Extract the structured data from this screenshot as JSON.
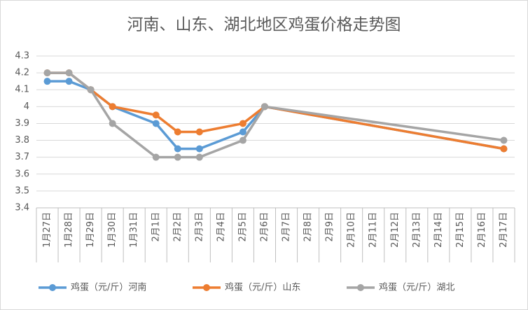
{
  "chart_data": {
    "type": "line",
    "title": "河南、山东、湖北地区鸡蛋价格走势图",
    "categories": [
      "1月27日",
      "1月28日",
      "1月29日",
      "1月30日",
      "1月31日",
      "2月1日",
      "2月2日",
      "2月3日",
      "2月4日",
      "2月5日",
      "2月6日",
      "2月7日",
      "2月8日",
      "2月9日",
      "2月10日",
      "2月11日",
      "2月12日",
      "2月13日",
      "2月14日",
      "2月15日",
      "2月16日",
      "2月17日"
    ],
    "series": [
      {
        "name": "鸡蛋（元/斤）河南",
        "color": "#5b9bd5",
        "values": [
          4.15,
          4.15,
          4.1,
          4.0,
          null,
          3.9,
          3.75,
          3.75,
          null,
          3.85,
          4.0,
          null,
          null,
          null,
          null,
          null,
          null,
          null,
          null,
          null,
          null,
          3.75
        ]
      },
      {
        "name": "鸡蛋（元/斤）山东",
        "color": "#ed7d31",
        "values": [
          4.2,
          4.2,
          4.1,
          4.0,
          null,
          3.95,
          3.85,
          3.85,
          null,
          3.9,
          4.0,
          null,
          null,
          null,
          null,
          null,
          null,
          null,
          null,
          null,
          null,
          3.75
        ]
      },
      {
        "name": "鸡蛋（元/斤）湖北",
        "color": "#a5a5a5",
        "values": [
          4.2,
          4.2,
          4.1,
          3.9,
          null,
          3.7,
          3.7,
          3.7,
          null,
          3.8,
          4.0,
          null,
          null,
          null,
          null,
          null,
          null,
          null,
          null,
          null,
          null,
          3.8
        ]
      }
    ],
    "ylim": [
      3.4,
      4.3
    ],
    "yticks": [
      3.4,
      3.5,
      3.6,
      3.7,
      3.8,
      3.9,
      4,
      4.1,
      4.2,
      4.3
    ],
    "grid": true,
    "span_gaps": true,
    "legend": "bottom"
  }
}
